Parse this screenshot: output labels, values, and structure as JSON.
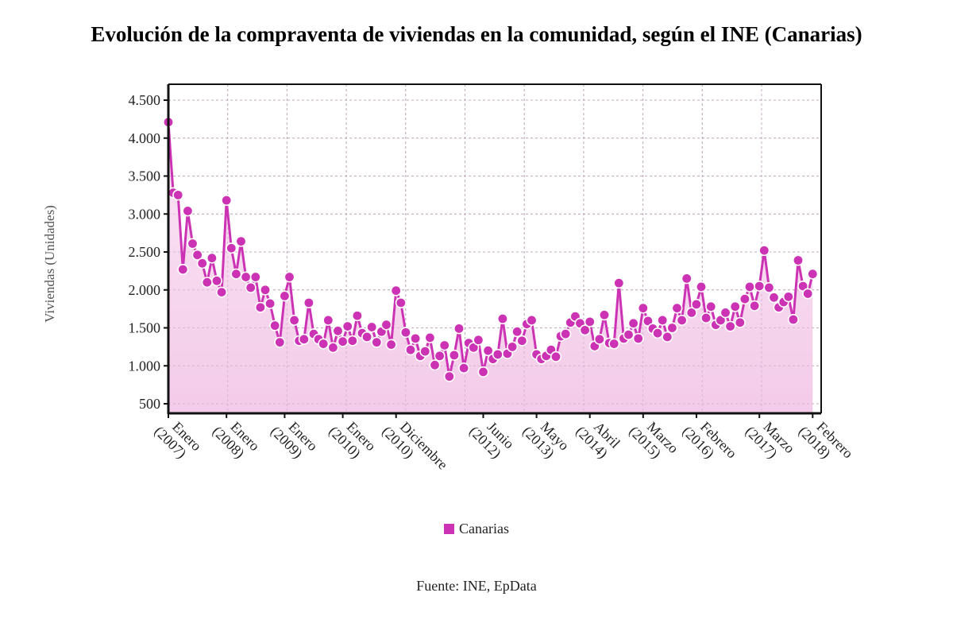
{
  "chart_data": {
    "type": "area",
    "title": "Evolución de la compraventa de viviendas en la comunidad, según el INE (Canarias)",
    "xlabel": "",
    "ylabel": "Viviendas (Unidades)",
    "ylim": [
      350,
      4700
    ],
    "yticks": [
      500,
      1000,
      1500,
      2000,
      2500,
      3000,
      3500,
      4000,
      4500
    ],
    "ytick_labels": [
      "500",
      "1.000",
      "1.500",
      "2.000",
      "2.500",
      "3.000",
      "3.500",
      "4.000",
      "4.500"
    ],
    "x_start": "Enero 2007",
    "x_unit": "month",
    "xtick_months": [
      0,
      12,
      24,
      36,
      47,
      65,
      76,
      87,
      98,
      109,
      122,
      133
    ],
    "xtick_labels": [
      [
        "Enero",
        "(2007)"
      ],
      [
        "Enero",
        "(2008)"
      ],
      [
        "Enero",
        "(2009)"
      ],
      [
        "Enero",
        "(2010)"
      ],
      [
        "Diciembre",
        "(2010)"
      ],
      [
        "Junio",
        "(2012)"
      ],
      [
        "Mayo",
        "(2013)"
      ],
      [
        "Abril",
        "(2014)"
      ],
      [
        "Marzo",
        "(2015)"
      ],
      [
        "Febrero",
        "(2016)"
      ],
      [
        "Marzo",
        "(2017)"
      ],
      [
        "Febrero",
        "(2018)"
      ]
    ],
    "grid": true,
    "legend_position": "bottom-center",
    "series": [
      {
        "name": "Canarias",
        "color": "#cc33b4",
        "values": [
          4210,
          3280,
          3250,
          2270,
          3040,
          2610,
          2460,
          2350,
          2100,
          2420,
          2120,
          1970,
          3180,
          2550,
          2210,
          2640,
          2170,
          2030,
          2170,
          1770,
          2000,
          1820,
          1530,
          1310,
          1920,
          2170,
          1600,
          1330,
          1350,
          1830,
          1420,
          1350,
          1290,
          1600,
          1240,
          1460,
          1320,
          1520,
          1330,
          1660,
          1430,
          1380,
          1510,
          1310,
          1450,
          1540,
          1280,
          1990,
          1830,
          1440,
          1210,
          1360,
          1130,
          1190,
          1370,
          1010,
          1130,
          1270,
          860,
          1140,
          1490,
          970,
          1300,
          1240,
          1340,
          920,
          1200,
          1090,
          1150,
          1620,
          1160,
          1250,
          1450,
          1330,
          1550,
          1600,
          1150,
          1090,
          1130,
          1210,
          1120,
          1390,
          1420,
          1570,
          1650,
          1560,
          1470,
          1580,
          1260,
          1350,
          1670,
          1300,
          1290,
          2090,
          1360,
          1410,
          1560,
          1360,
          1760,
          1590,
          1490,
          1430,
          1600,
          1380,
          1500,
          1760,
          1600,
          2150,
          1700,
          1810,
          2040,
          1630,
          1780,
          1540,
          1600,
          1700,
          1520,
          1780,
          1570,
          1880,
          2040,
          1790,
          2050,
          2520,
          2030,
          1900,
          1770,
          1840,
          1910,
          1610,
          2390,
          2050,
          1950,
          2210
        ]
      }
    ]
  },
  "legend": {
    "label": "Canarias"
  },
  "source": "Fuente: INE, EpData"
}
